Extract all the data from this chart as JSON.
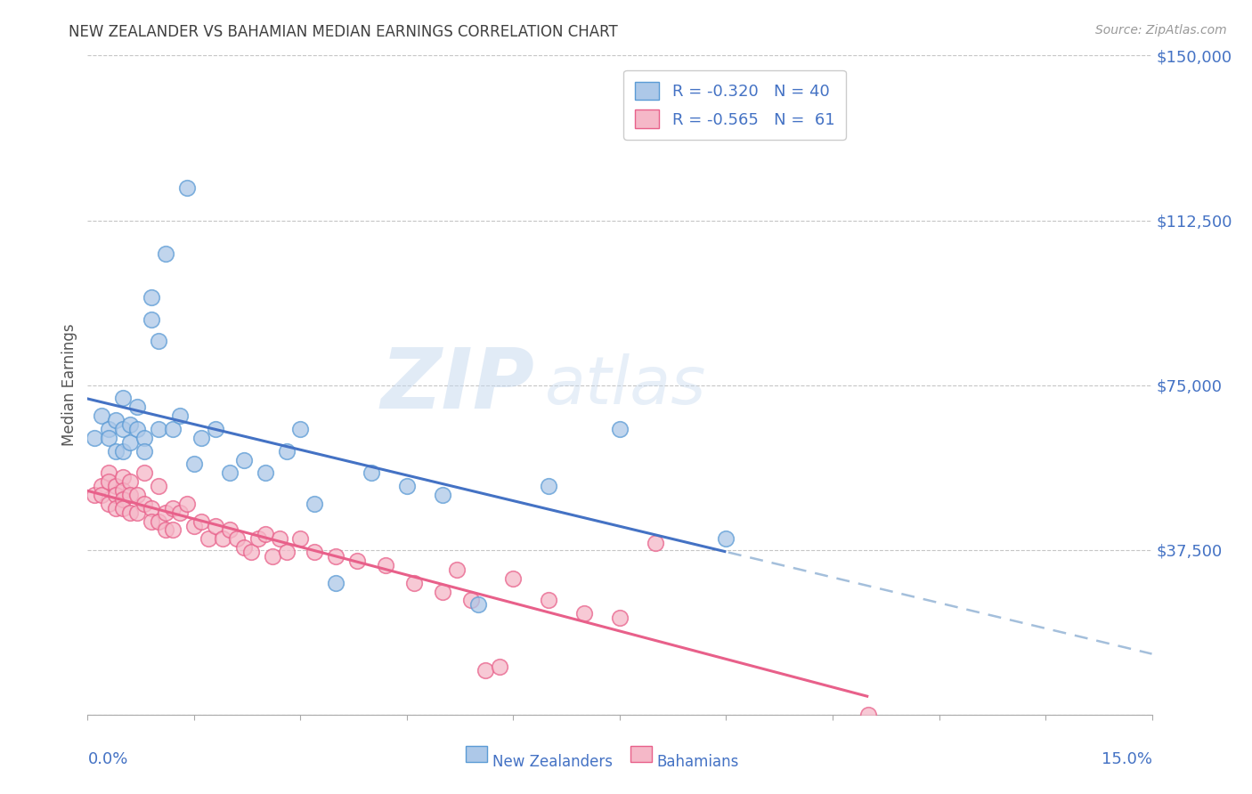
{
  "title": "NEW ZEALANDER VS BAHAMIAN MEDIAN EARNINGS CORRELATION CHART",
  "source": "Source: ZipAtlas.com",
  "ylabel": "Median Earnings",
  "xlim": [
    0.0,
    0.15
  ],
  "ylim": [
    0,
    150000
  ],
  "watermark_zip": "ZIP",
  "watermark_atlas": "atlas",
  "legend_nz_r": "R = -0.320",
  "legend_nz_n": "N = 40",
  "legend_bah_r": "R = -0.565",
  "legend_bah_n": "N =  61",
  "nz_fill_color": "#adc8e8",
  "nz_edge_color": "#5b9bd5",
  "bah_fill_color": "#f5b8c8",
  "bah_edge_color": "#e8608a",
  "nz_line_color": "#4472c4",
  "bah_line_color": "#e8608a",
  "dashed_line_color": "#9ab8d8",
  "background_color": "#ffffff",
  "grid_color": "#c0c0c0",
  "title_color": "#404040",
  "axis_label_color": "#4472c4",
  "source_color": "#999999",
  "yticks": [
    0,
    37500,
    75000,
    112500,
    150000
  ],
  "ytick_labels": [
    "",
    "$37,500",
    "$75,000",
    "$112,500",
    "$150,000"
  ],
  "xtick_positions": [
    0.0,
    0.015,
    0.03,
    0.045,
    0.06,
    0.075,
    0.09,
    0.105,
    0.12,
    0.135,
    0.15
  ],
  "nz_scatter_x": [
    0.001,
    0.002,
    0.003,
    0.003,
    0.004,
    0.004,
    0.005,
    0.005,
    0.005,
    0.006,
    0.006,
    0.007,
    0.007,
    0.008,
    0.008,
    0.009,
    0.009,
    0.01,
    0.01,
    0.011,
    0.012,
    0.013,
    0.014,
    0.015,
    0.016,
    0.018,
    0.02,
    0.022,
    0.025,
    0.028,
    0.03,
    0.032,
    0.035,
    0.04,
    0.045,
    0.05,
    0.055,
    0.065,
    0.075,
    0.09
  ],
  "nz_scatter_y": [
    63000,
    68000,
    65000,
    63000,
    67000,
    60000,
    72000,
    65000,
    60000,
    66000,
    62000,
    65000,
    70000,
    63000,
    60000,
    95000,
    90000,
    85000,
    65000,
    105000,
    65000,
    68000,
    120000,
    57000,
    63000,
    65000,
    55000,
    58000,
    55000,
    60000,
    65000,
    48000,
    30000,
    55000,
    52000,
    50000,
    25000,
    52000,
    65000,
    40000
  ],
  "bah_scatter_x": [
    0.001,
    0.002,
    0.002,
    0.003,
    0.003,
    0.003,
    0.004,
    0.004,
    0.004,
    0.005,
    0.005,
    0.005,
    0.005,
    0.006,
    0.006,
    0.006,
    0.007,
    0.007,
    0.008,
    0.008,
    0.009,
    0.009,
    0.01,
    0.01,
    0.011,
    0.011,
    0.012,
    0.012,
    0.013,
    0.014,
    0.015,
    0.016,
    0.017,
    0.018,
    0.019,
    0.02,
    0.021,
    0.022,
    0.023,
    0.024,
    0.025,
    0.026,
    0.027,
    0.028,
    0.03,
    0.032,
    0.035,
    0.038,
    0.042,
    0.046,
    0.05,
    0.052,
    0.054,
    0.056,
    0.058,
    0.06,
    0.065,
    0.07,
    0.075,
    0.08,
    0.11
  ],
  "bah_scatter_y": [
    50000,
    52000,
    50000,
    55000,
    53000,
    48000,
    52000,
    50000,
    47000,
    54000,
    51000,
    49000,
    47000,
    53000,
    50000,
    46000,
    50000,
    46000,
    55000,
    48000,
    47000,
    44000,
    52000,
    44000,
    46000,
    42000,
    47000,
    42000,
    46000,
    48000,
    43000,
    44000,
    40000,
    43000,
    40000,
    42000,
    40000,
    38000,
    37000,
    40000,
    41000,
    36000,
    40000,
    37000,
    40000,
    37000,
    36000,
    35000,
    34000,
    30000,
    28000,
    33000,
    26000,
    10000,
    11000,
    31000,
    26000,
    23000,
    22000,
    39000,
    0
  ]
}
